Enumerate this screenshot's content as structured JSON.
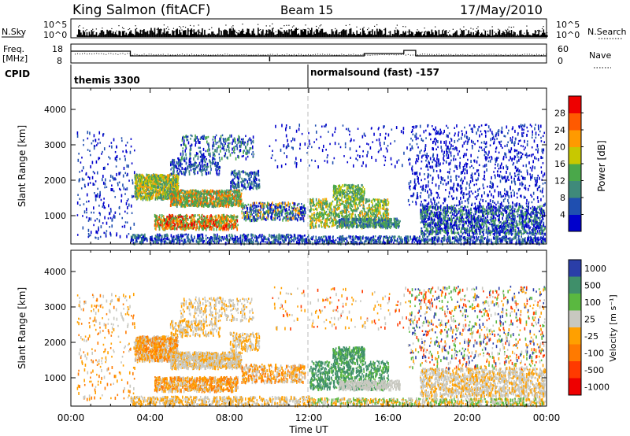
{
  "header": {
    "station": "King Salmon (fitACF)",
    "beam": "Beam 15",
    "date": "17/May/2010"
  },
  "top_panels": {
    "nsky_label": "N.Sky",
    "nsky_ticks": [
      "10^5",
      "10^0"
    ],
    "nsearch_label": "N.Search",
    "freq_label": "Freq.",
    "freq_unit": "[MHz]",
    "freq_ticks": [
      "18",
      "8"
    ],
    "nave_label": "Nave",
    "nave_ticks": [
      "60",
      "0"
    ],
    "cpid_label": "CPID",
    "cpid_segments": [
      {
        "label": "themis 3300",
        "start_hour": 0
      },
      {
        "label": "normalsound (fast) -157",
        "start_hour": 12
      }
    ]
  },
  "chart_data": [
    {
      "type": "heatmap",
      "panel": "power",
      "ylabel": "Slant Range [km]",
      "xlabel": "Time UT",
      "x_ticks": [
        "00:00",
        "04:00",
        "08:00",
        "12:00",
        "16:00",
        "20:00",
        "00:00"
      ],
      "xlim": [
        0,
        24
      ],
      "y_ticks": [
        1000,
        2000,
        3000,
        4000
      ],
      "ylim": [
        200,
        4600
      ],
      "colorbar_label": "Power [dB]",
      "colorbar_ticks": [
        4,
        8,
        12,
        16,
        20,
        24,
        28
      ],
      "colorbar_range": [
        0,
        30
      ],
      "colors": [
        "#0000cc",
        "#1f4fb0",
        "#3f8a7a",
        "#4aa84a",
        "#c8c800",
        "#ff9a00",
        "#ff5a00",
        "#ee0000"
      ]
    },
    {
      "type": "heatmap",
      "panel": "velocity",
      "ylabel": "Slant Range [km]",
      "xlabel": "Time UT",
      "x_ticks": [
        "00:00",
        "04:00",
        "08:00",
        "12:00",
        "16:00",
        "20:00",
        "00:00"
      ],
      "xlim": [
        0,
        24
      ],
      "y_ticks": [
        1000,
        2000,
        3000,
        4000
      ],
      "ylim": [
        200,
        4600
      ],
      "colorbar_label": "Velocity [m s⁻¹]",
      "colorbar_ticks": [
        "1000",
        "500",
        "100",
        "25",
        "-25",
        "-100",
        "-500",
        "-1000"
      ],
      "colors": [
        "#2a3ea8",
        "#3f8f6a",
        "#5ab840",
        "#c8c8c0",
        "#ffa000",
        "#ff7a00",
        "#ff3a00",
        "#ee0000"
      ]
    }
  ]
}
